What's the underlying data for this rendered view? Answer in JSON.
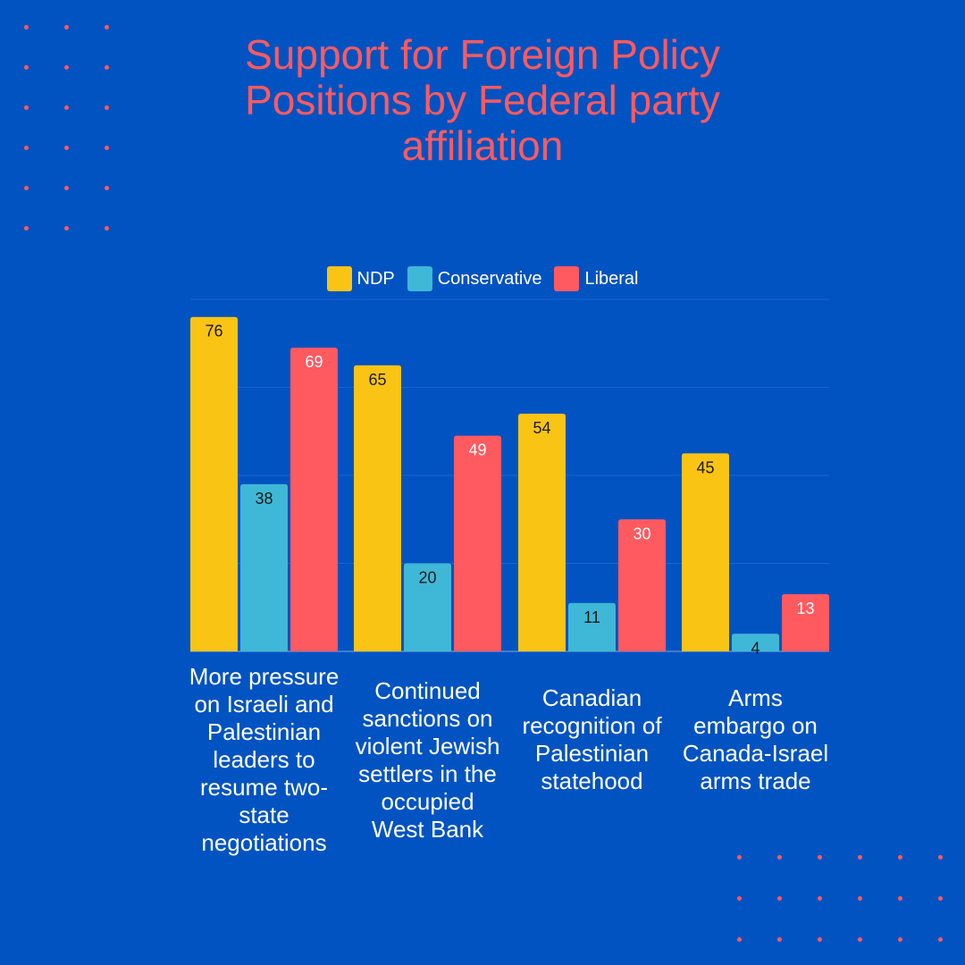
{
  "chart_data": {
    "type": "bar",
    "title": "Support for Foreign Policy Positions by Federal party affiliation",
    "categories": [
      "More pressure on Israeli and Palestinian leaders to resume two-state negotiations",
      "Continued sanctions on violent Jewish settlers in the occupied West Bank",
      "Canadian recognition of Palestinian statehood",
      "Arms embargo on Canada-Israel arms trade"
    ],
    "series": [
      {
        "name": "NDP",
        "values": [
          76,
          65,
          54,
          45
        ],
        "color": "#f9c414",
        "label_color": "#1a1a1a"
      },
      {
        "name": "Conservative",
        "values": [
          38,
          20,
          11,
          4
        ],
        "color": "#3fb8d7",
        "label_color": "#1a1a1a"
      },
      {
        "name": "Liberal",
        "values": [
          69,
          49,
          30,
          13
        ],
        "color": "#ff5a5f",
        "label_color": "#ffffff"
      }
    ],
    "ylim": [
      0,
      80
    ],
    "grid": true,
    "legend": "top",
    "xlabel": "",
    "ylabel": ""
  },
  "colors": {
    "background": "#0153c2",
    "accent": "#ff5a5f"
  }
}
